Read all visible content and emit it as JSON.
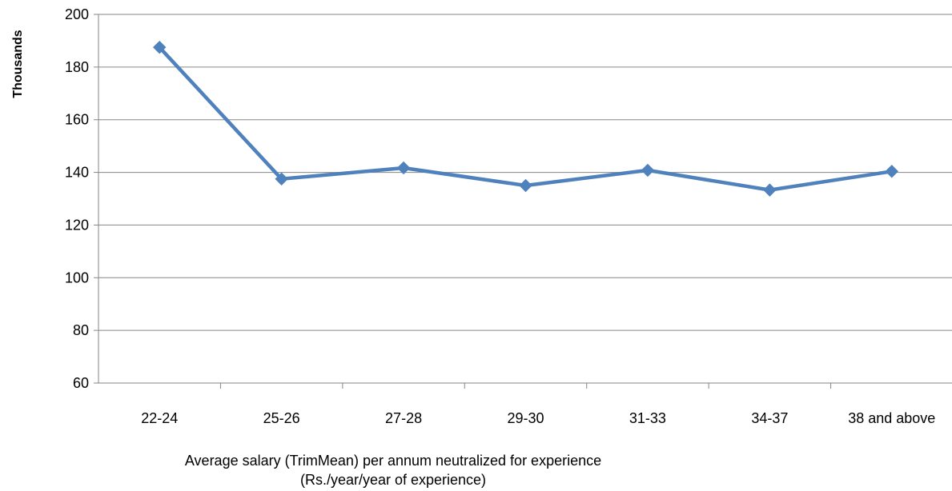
{
  "chart_data": {
    "type": "line",
    "categories": [
      "22-24",
      "25-26",
      "27-28",
      "29-30",
      "31-33",
      "34-37",
      "38 and above"
    ],
    "series": [
      {
        "values": [
          187.5,
          137.5,
          141.7,
          135.0,
          140.8,
          133.3,
          140.4
        ]
      }
    ],
    "ylabel": "Thousands",
    "xlabel_lines": [
      "Average salary (TrimMean) per annum neutralized for experience",
      "(Rs./year/year of experience)"
    ],
    "ylim": [
      60,
      200
    ],
    "yticks": [
      60,
      80,
      100,
      120,
      140,
      160,
      180,
      200
    ],
    "grid": true,
    "legend": "none",
    "colors": {
      "series": "#4F81BD",
      "grid": "#868686",
      "axis": "#868686"
    }
  }
}
